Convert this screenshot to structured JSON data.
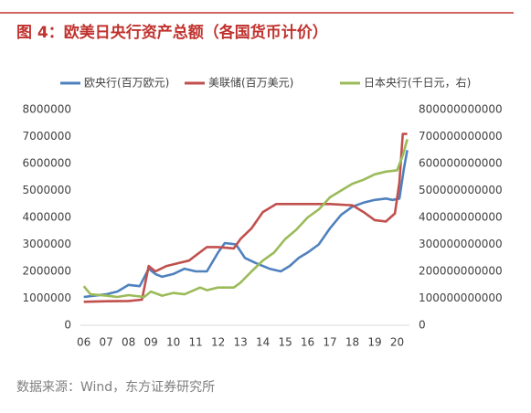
{
  "chart_data": {
    "type": "line",
    "title": "图 4：欧美日央行资产总额（各国货币计价）",
    "source": "数据来源：Wind，东方证券研究所",
    "xlim": [
      2005.85,
      2020.55
    ],
    "xticks": [
      {
        "value": 2006,
        "label": "06"
      },
      {
        "value": 2007,
        "label": "07"
      },
      {
        "value": 2008,
        "label": "08"
      },
      {
        "value": 2009,
        "label": "09"
      },
      {
        "value": 2010,
        "label": "10"
      },
      {
        "value": 2011,
        "label": "11"
      },
      {
        "value": 2012,
        "label": "12"
      },
      {
        "value": 2013,
        "label": "13"
      },
      {
        "value": 2014,
        "label": "14"
      },
      {
        "value": 2015,
        "label": "15"
      },
      {
        "value": 2016,
        "label": "16"
      },
      {
        "value": 2017,
        "label": "17"
      },
      {
        "value": 2018,
        "label": "18"
      },
      {
        "value": 2019,
        "label": "19"
      },
      {
        "value": 2020,
        "label": "20"
      }
    ],
    "ylim": [
      0,
      8000000
    ],
    "yticks": [
      0,
      1000000,
      2000000,
      3000000,
      4000000,
      5000000,
      6000000,
      7000000,
      8000000
    ],
    "y2lim": [
      0,
      800000000000
    ],
    "y2ticks": [
      0,
      100000000000,
      200000000000,
      300000000000,
      400000000000,
      500000000000,
      600000000000,
      700000000000,
      800000000000
    ],
    "series": [
      {
        "name": "欧央行(百万欧元)",
        "color": "#4f81bd",
        "x": [
          2006,
          2007,
          2007.5,
          2008,
          2008.5,
          2008.9,
          2009.2,
          2009.5,
          2010,
          2010.5,
          2011,
          2011.5,
          2012,
          2012.3,
          2012.8,
          2013.2,
          2013.7,
          2014.3,
          2014.8,
          2015.2,
          2015.6,
          2016,
          2016.5,
          2017,
          2017.5,
          2018,
          2018.5,
          2019,
          2019.5,
          2019.8,
          2020.1,
          2020.3,
          2020.45
        ],
        "values": [
          1050000,
          1150000,
          1250000,
          1500000,
          1450000,
          2100000,
          1900000,
          1800000,
          1900000,
          2100000,
          2000000,
          2000000,
          2700000,
          3050000,
          3000000,
          2500000,
          2300000,
          2100000,
          2000000,
          2200000,
          2500000,
          2700000,
          3000000,
          3600000,
          4100000,
          4400000,
          4550000,
          4650000,
          4700000,
          4650000,
          4700000,
          5800000,
          6500000
        ]
      },
      {
        "name": "美联储(百万美元)",
        "color": "#c0504d",
        "x": [
          2006,
          2007,
          2008,
          2008.6,
          2008.9,
          2009.2,
          2009.7,
          2010.2,
          2010.7,
          2011.5,
          2012,
          2012.7,
          2013,
          2013.5,
          2014,
          2014.6,
          2015,
          2016,
          2017,
          2018,
          2018.5,
          2019,
          2019.5,
          2019.9,
          2020.1,
          2020.25,
          2020.45
        ],
        "values": [
          870000,
          890000,
          900000,
          950000,
          2200000,
          2000000,
          2200000,
          2300000,
          2400000,
          2900000,
          2900000,
          2850000,
          3200000,
          3600000,
          4200000,
          4500000,
          4500000,
          4500000,
          4500000,
          4450000,
          4200000,
          3900000,
          3850000,
          4150000,
          5300000,
          7100000,
          7100000
        ]
      },
      {
        "name": "日本央行(千日元，右)",
        "color": "#9bbb59",
        "axis": "y2",
        "x": [
          2006,
          2006.3,
          2007,
          2007.5,
          2008,
          2008.7,
          2009,
          2009.5,
          2010,
          2010.5,
          2011.2,
          2011.5,
          2012,
          2012.7,
          2013,
          2013.5,
          2014,
          2014.5,
          2015,
          2015.5,
          2016,
          2016.5,
          2017,
          2017.5,
          2018,
          2018.5,
          2019,
          2019.5,
          2020,
          2020.25,
          2020.45
        ],
        "values": [
          145000000000,
          115000000000,
          110000000000,
          105000000000,
          112000000000,
          105000000000,
          125000000000,
          110000000000,
          120000000000,
          115000000000,
          140000000000,
          130000000000,
          140000000000,
          140000000000,
          158000000000,
          200000000000,
          240000000000,
          270000000000,
          320000000000,
          355000000000,
          400000000000,
          430000000000,
          475000000000,
          500000000000,
          525000000000,
          540000000000,
          560000000000,
          570000000000,
          575000000000,
          630000000000,
          690000000000
        ]
      }
    ]
  }
}
